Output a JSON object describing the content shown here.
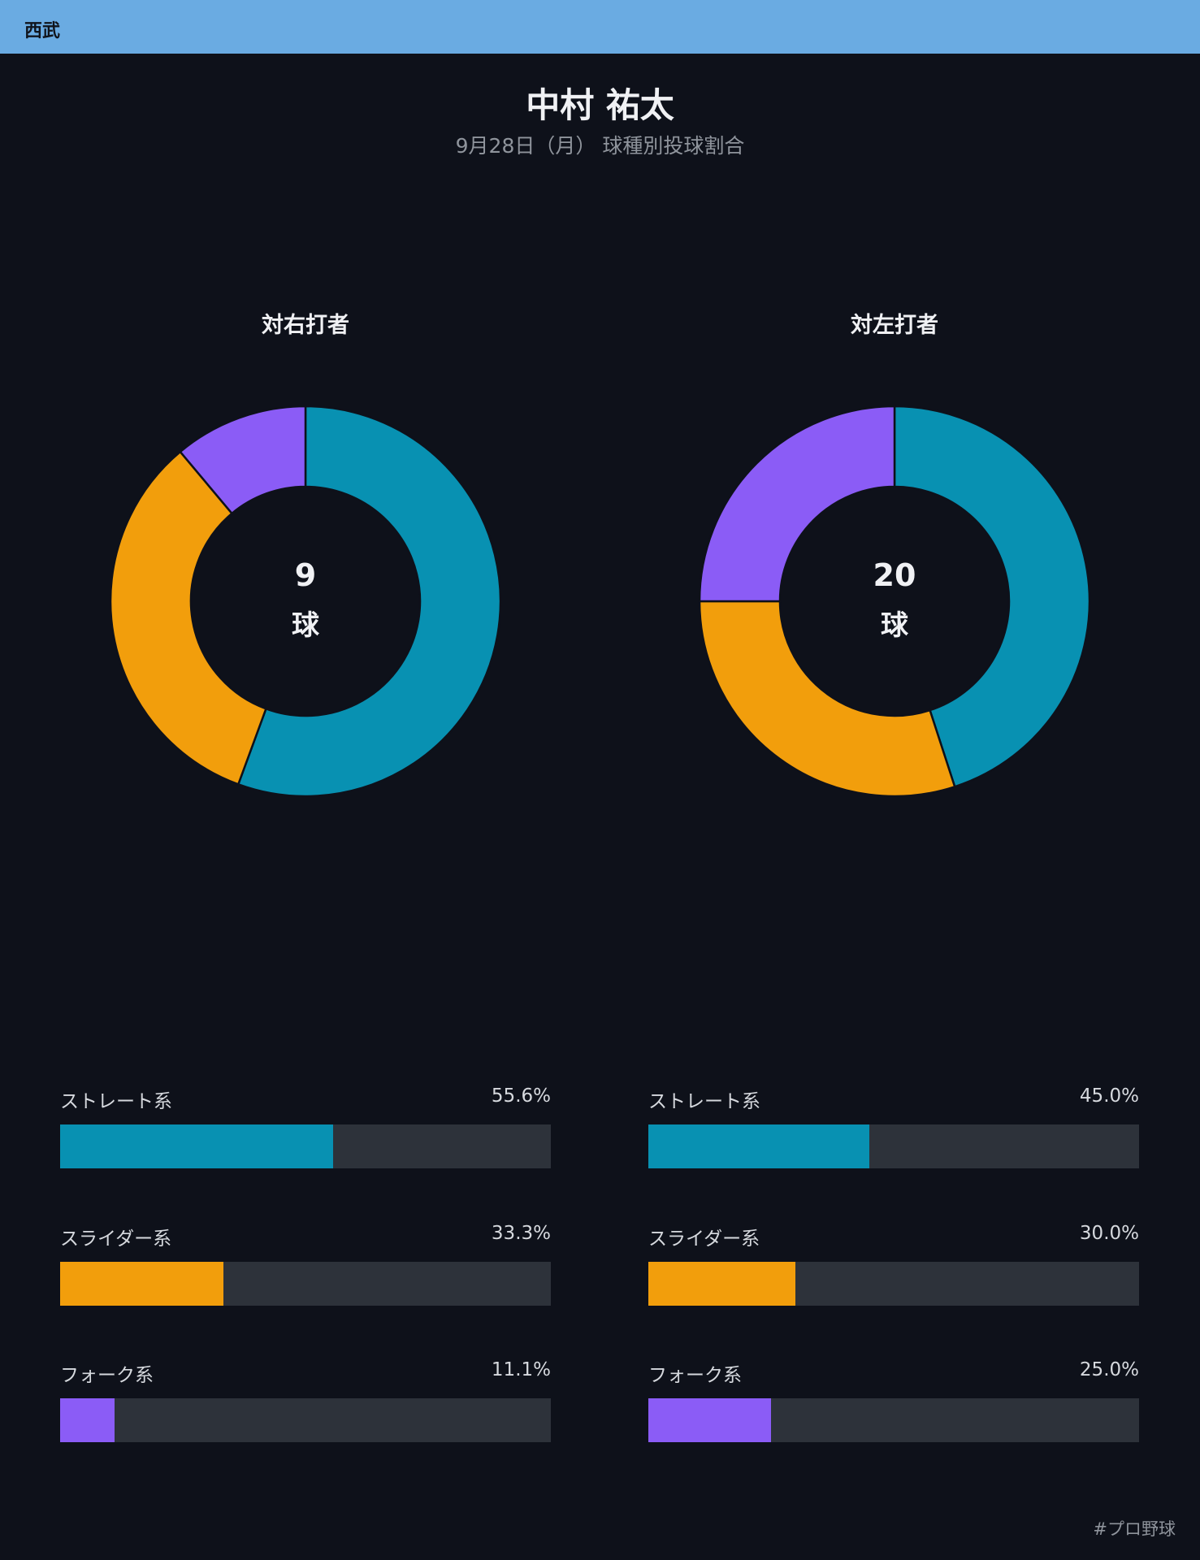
{
  "header": {
    "team": "西武"
  },
  "title": "中村 祐太",
  "subtitle": "9月28日（月） 球種別投球割合",
  "colors": {
    "straight": "#0891b2",
    "slider": "#f29e0c",
    "fork": "#8b5cf6",
    "track": "#2d323a",
    "accent": "#6aabe2"
  },
  "chart_data": [
    {
      "type": "pie",
      "title": "対右打者",
      "total": "9",
      "unit": "球",
      "categories": [
        "ストレート系",
        "スライダー系",
        "フォーク系"
      ],
      "values": [
        55.6,
        33.3,
        11.1
      ],
      "labels": [
        "55.6%",
        "33.3%",
        "11.1%"
      ]
    },
    {
      "type": "pie",
      "title": "対左打者",
      "total": "20",
      "unit": "球",
      "categories": [
        "ストレート系",
        "スライダー系",
        "フォーク系"
      ],
      "values": [
        45.0,
        30.0,
        25.0
      ],
      "labels": [
        "45.0%",
        "30.0%",
        "25.0%"
      ]
    }
  ],
  "footer": {
    "hashtag": "#プロ野球"
  }
}
